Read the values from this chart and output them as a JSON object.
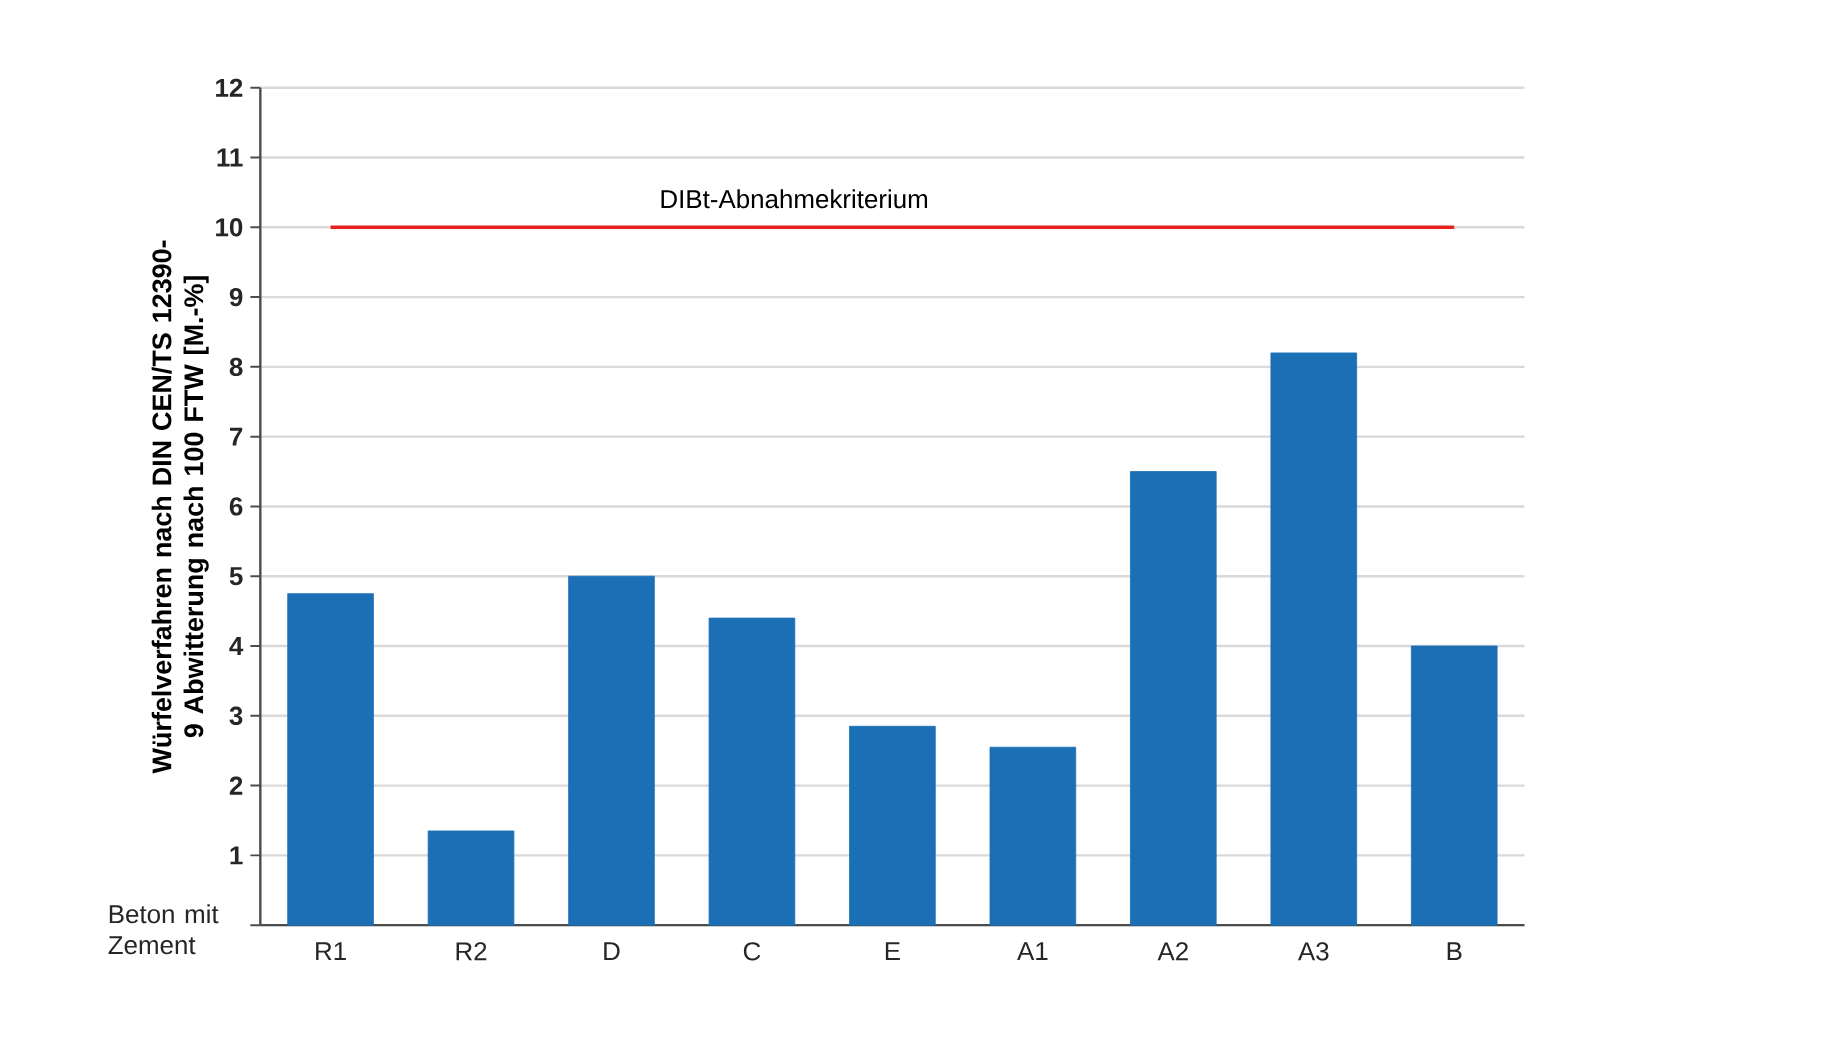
{
  "chart_data": {
    "type": "bar",
    "ylabel": "Würfelverfahren nach DIN CEN/TS 12390-9 Abwitterung nach 100 FTW [M.-%]",
    "xlabel": "Beton mit Zement",
    "categories": [
      "R1",
      "R2",
      "D",
      "C",
      "E",
      "A1",
      "A2",
      "A3",
      "B"
    ],
    "values": [
      4.75,
      1.35,
      5.0,
      4.4,
      2.85,
      2.55,
      6.5,
      8.2,
      4.0
    ],
    "color": "#1a6fb5",
    "ylim": [
      0,
      12
    ],
    "yticks": [
      {
        "value": 0,
        "label": null
      },
      1,
      2,
      3,
      4,
      5,
      6,
      7,
      8,
      9,
      10,
      11,
      12
    ],
    "grid": "y",
    "ref_lines": [
      {
        "axis": "y",
        "value": 10,
        "label": "DIBt-Abnahmekriterium",
        "color": "#e8201c"
      }
    ]
  }
}
